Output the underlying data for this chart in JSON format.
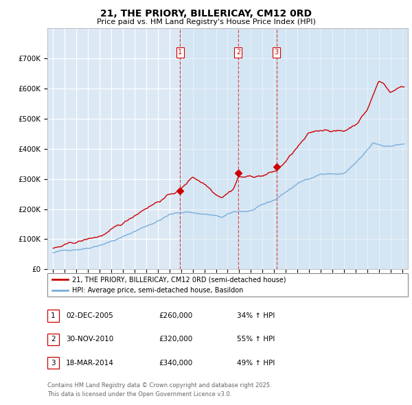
{
  "title": "21, THE PRIORY, BILLERICAY, CM12 0RD",
  "subtitle": "Price paid vs. HM Land Registry's House Price Index (HPI)",
  "legend_line1": "21, THE PRIORY, BILLERICAY, CM12 0RD (semi-detached house)",
  "legend_line2": "HPI: Average price, semi-detached house, Basildon",
  "footer1": "Contains HM Land Registry data © Crown copyright and database right 2025.",
  "footer2": "This data is licensed under the Open Government Licence v3.0.",
  "transactions": [
    {
      "num": 1,
      "date": "02-DEC-2005",
      "price": "£260,000",
      "pct": "34% ↑ HPI",
      "year": 2005.92
    },
    {
      "num": 2,
      "date": "30-NOV-2010",
      "price": "£320,000",
      "pct": "55% ↑ HPI",
      "year": 2010.91
    },
    {
      "num": 3,
      "date": "18-MAR-2014",
      "price": "£340,000",
      "pct": "49% ↑ HPI",
      "year": 2014.21
    }
  ],
  "trans_values_red": [
    260000,
    320000,
    340000
  ],
  "background_color": "#dce9f5",
  "red_color": "#cc0000",
  "blue_color": "#7aaddc",
  "grid_color": "#ffffff",
  "ylim": [
    0,
    800000
  ],
  "yticks": [
    0,
    100000,
    200000,
    300000,
    400000,
    500000,
    600000,
    700000
  ],
  "ytick_labels": [
    "£0",
    "£100K",
    "£200K",
    "£300K",
    "£400K",
    "£500K",
    "£600K",
    "£700K"
  ]
}
